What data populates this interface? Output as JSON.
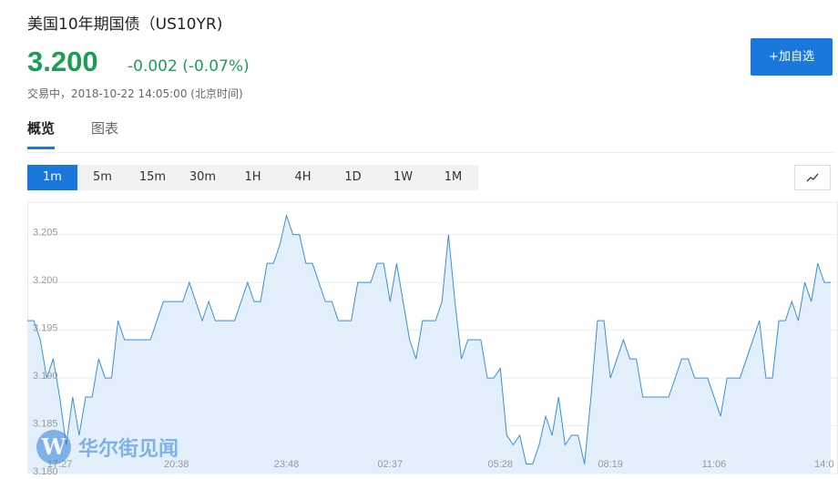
{
  "header": {
    "title": "美国10年期国债（US10YR)",
    "price": "3.200",
    "change": "-0.002 (-0.07%)",
    "status": "交易中，2018-10-22 14:05:00 (北京时间)",
    "add_button": "+加自选"
  },
  "tabs": [
    "概览",
    "图表"
  ],
  "ranges": [
    "1m",
    "5m",
    "15m",
    "30m",
    "1H",
    "4H",
    "1D",
    "1W",
    "1M"
  ],
  "watermark": {
    "logo": "W",
    "text": "华尔街见闻"
  },
  "chart_data": {
    "type": "area",
    "color": "#3a8fd9",
    "fill": "#e3f0fc",
    "grid": true,
    "categories": [
      null,
      null,
      null,
      null,
      null,
      "17:27",
      null,
      null,
      null,
      null,
      null,
      null,
      null,
      null,
      null,
      null,
      null,
      null,
      null,
      null,
      null,
      null,
      null,
      "20:38",
      null,
      null,
      null,
      null,
      null,
      null,
      null,
      null,
      null,
      null,
      null,
      null,
      null,
      null,
      null,
      null,
      "23:48",
      null,
      null,
      null,
      null,
      null,
      null,
      null,
      null,
      null,
      null,
      null,
      null,
      null,
      null,
      null,
      "02:37",
      null,
      null,
      null,
      null,
      null,
      null,
      null,
      null,
      null,
      null,
      null,
      null,
      null,
      null,
      null,
      null,
      "05:28",
      null,
      null,
      null,
      null,
      null,
      null,
      null,
      null,
      null,
      null,
      null,
      null,
      null,
      null,
      null,
      null,
      "08:19",
      null,
      null,
      null,
      null,
      null,
      null,
      null,
      null,
      null,
      null,
      null,
      null,
      null,
      null,
      null,
      "11:06",
      null,
      null,
      null,
      null,
      null,
      null,
      null,
      null,
      null,
      null,
      null,
      null,
      null,
      null,
      null,
      null,
      "14:0",
      null
    ],
    "values": [
      3.196,
      3.196,
      3.194,
      3.19,
      3.192,
      3.188,
      3.183,
      3.188,
      3.184,
      3.188,
      3.188,
      3.192,
      3.19,
      3.19,
      3.196,
      3.194,
      3.194,
      3.194,
      3.194,
      3.194,
      3.196,
      3.198,
      3.198,
      3.198,
      3.198,
      3.2,
      3.198,
      3.196,
      3.198,
      3.196,
      3.196,
      3.196,
      3.196,
      3.198,
      3.2,
      3.198,
      3.198,
      3.202,
      3.202,
      3.204,
      3.207,
      3.205,
      3.205,
      3.202,
      3.202,
      3.2,
      3.198,
      3.198,
      3.196,
      3.196,
      3.196,
      3.2,
      3.2,
      3.2,
      3.202,
      3.202,
      3.198,
      3.202,
      3.198,
      3.194,
      3.192,
      3.196,
      3.196,
      3.196,
      3.198,
      3.205,
      3.198,
      3.192,
      3.194,
      3.194,
      3.194,
      3.19,
      3.19,
      3.191,
      3.184,
      3.183,
      3.184,
      3.181,
      3.181,
      3.183,
      3.186,
      3.184,
      3.188,
      3.183,
      3.184,
      3.184,
      3.181,
      3.188,
      3.196,
      3.196,
      3.19,
      3.192,
      3.194,
      3.192,
      3.192,
      3.188,
      3.188,
      3.188,
      3.188,
      3.188,
      3.19,
      3.192,
      3.192,
      3.19,
      3.19,
      3.19,
      3.188,
      3.186,
      3.19,
      3.19,
      3.19,
      3.192,
      3.194,
      3.196,
      3.19,
      3.19,
      3.196,
      3.196,
      3.198,
      3.196,
      3.2,
      3.198,
      3.202,
      3.2,
      3.2
    ],
    "ylim": [
      3.18,
      3.2084
    ],
    "yticks": [
      {
        "value": 3.18,
        "label": "3.180"
      },
      3.185,
      {
        "value": 3.19,
        "label": "3.190"
      },
      3.195,
      {
        "value": 3.2,
        "label": "3.200"
      },
      3.205
    ]
  }
}
